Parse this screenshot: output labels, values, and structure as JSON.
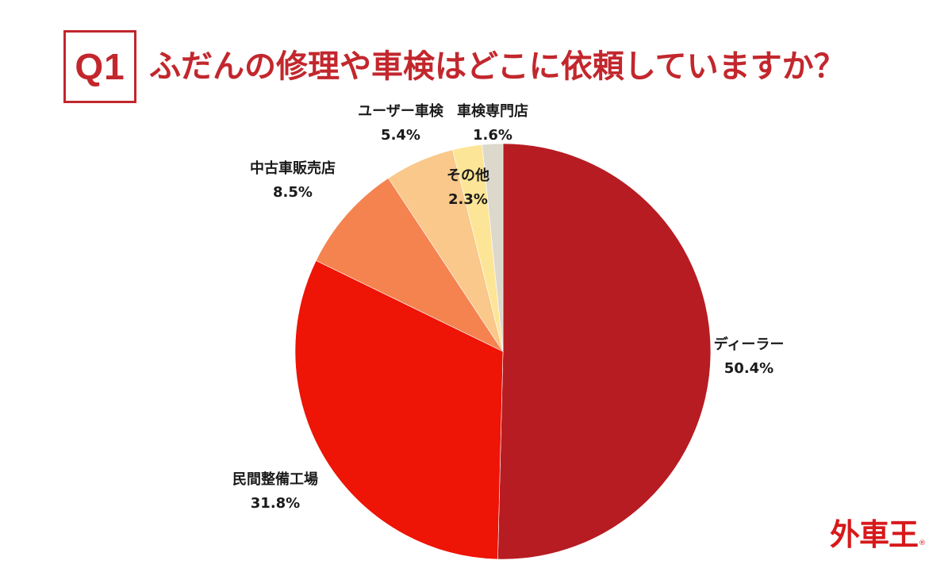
{
  "header": {
    "badge": "Q1",
    "title": "ふだんの修理や車検はどこに依頼していますか？"
  },
  "chart_data": {
    "type": "pie",
    "title": "ふだんの修理や車検はどこに依頼していますか？",
    "slices": [
      {
        "label": "ディーラー",
        "value": 50.4,
        "display": "50.4%",
        "color": "#b71c22"
      },
      {
        "label": "民間整備工場",
        "value": 31.8,
        "display": "31.8%",
        "color": "#ee1406"
      },
      {
        "label": "中古車販売店",
        "value": 8.5,
        "display": "8.5%",
        "color": "#f5834f"
      },
      {
        "label": "ユーザー車検",
        "value": 5.4,
        "display": "5.4%",
        "color": "#f9c88a"
      },
      {
        "label": "その他",
        "value": 2.3,
        "display": "2.3%",
        "color": "#fde597"
      },
      {
        "label": "車検専門店",
        "value": 1.6,
        "display": "1.6%",
        "color": "#dcd8cc"
      }
    ],
    "start_angle": "12 o'clock",
    "direction": "clockwise",
    "legend": "none"
  },
  "logo": {
    "text": "外車王",
    "mark": "®"
  }
}
